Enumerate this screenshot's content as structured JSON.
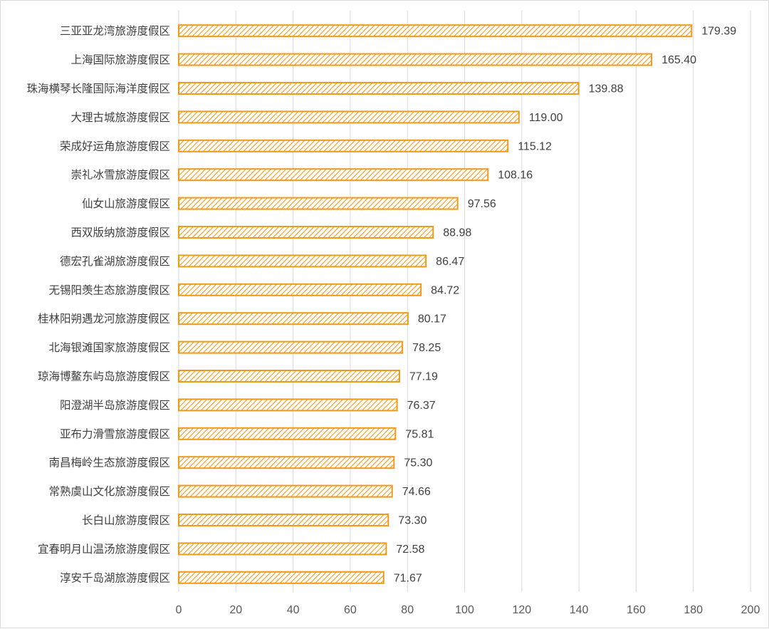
{
  "chart_data": {
    "type": "bar",
    "orientation": "horizontal",
    "title": "",
    "xlabel": "",
    "ylabel": "",
    "xlim": [
      0,
      200
    ],
    "x_ticks": [
      0,
      20,
      40,
      60,
      80,
      100,
      120,
      140,
      160,
      180,
      200
    ],
    "grid": true,
    "bar_color": "#f09a1a",
    "bar_pattern": "diagonal-hatch",
    "categories": [
      "三亚亚龙湾旅游度假区",
      "上海国际旅游度假区",
      "珠海横琴长隆国际海洋度假区",
      "大理古城旅游度假区",
      "荣成好运角旅游度假区",
      "崇礼冰雪旅游度假区",
      "仙女山旅游度假区",
      "西双版纳旅游度假区",
      "德宏孔雀湖旅游度假区",
      "无锡阳羡生态旅游度假区",
      "桂林阳朔遇龙河旅游度假区",
      "北海银滩国家旅游度假区",
      "琼海博鳌东屿岛旅游度假区",
      "阳澄湖半岛旅游度假区",
      "亚布力滑雪旅游度假区",
      "南昌梅岭生态旅游度假区",
      "常熟虞山文化旅游度假区",
      "长白山旅游度假区",
      "宜春明月山温汤旅游度假区",
      "淳安千岛湖旅游度假区"
    ],
    "values": [
      179.39,
      165.4,
      139.88,
      119.0,
      115.12,
      108.16,
      97.56,
      88.98,
      86.47,
      84.72,
      80.17,
      78.25,
      77.19,
      76.37,
      75.81,
      75.3,
      74.66,
      73.3,
      72.58,
      71.67
    ],
    "value_labels": [
      "179.39",
      "165.40",
      "139.88",
      "119.00",
      "115.12",
      "108.16",
      "97.56",
      "88.98",
      "86.47",
      "84.72",
      "80.17",
      "78.25",
      "77.19",
      "76.37",
      "75.81",
      "75.30",
      "74.66",
      "73.30",
      "72.58",
      "71.67"
    ]
  }
}
